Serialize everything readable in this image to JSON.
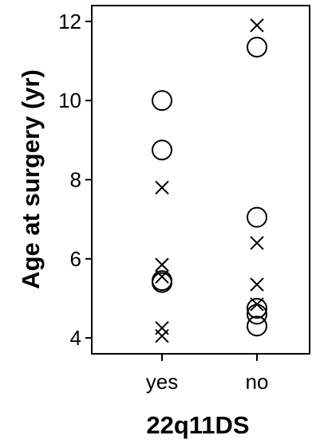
{
  "chart_data": {
    "type": "scatter",
    "xlabel": "22q11DS",
    "ylabel": "Age at surgery (yr)",
    "categories": [
      "yes",
      "no"
    ],
    "ylim": [
      3.6,
      12.4
    ],
    "yticks": [
      4,
      6,
      8,
      10,
      12
    ],
    "grid": false,
    "legend": "none",
    "series": [
      {
        "marker": "circle",
        "points": [
          {
            "x": "yes",
            "y": 10.0
          },
          {
            "x": "yes",
            "y": 8.75
          },
          {
            "x": "yes",
            "y": 5.45
          },
          {
            "x": "yes",
            "y": 5.4
          },
          {
            "x": "no",
            "y": 11.35
          },
          {
            "x": "no",
            "y": 7.05
          },
          {
            "x": "no",
            "y": 4.75
          },
          {
            "x": "no",
            "y": 4.6
          },
          {
            "x": "no",
            "y": 4.3
          }
        ]
      },
      {
        "marker": "cross",
        "points": [
          {
            "x": "yes",
            "y": 7.8
          },
          {
            "x": "yes",
            "y": 5.85
          },
          {
            "x": "yes",
            "y": 5.55
          },
          {
            "x": "yes",
            "y": 4.25
          },
          {
            "x": "yes",
            "y": 4.05
          },
          {
            "x": "no",
            "y": 11.9
          },
          {
            "x": "no",
            "y": 6.4
          },
          {
            "x": "no",
            "y": 5.35
          },
          {
            "x": "no",
            "y": 4.85
          }
        ]
      }
    ]
  }
}
